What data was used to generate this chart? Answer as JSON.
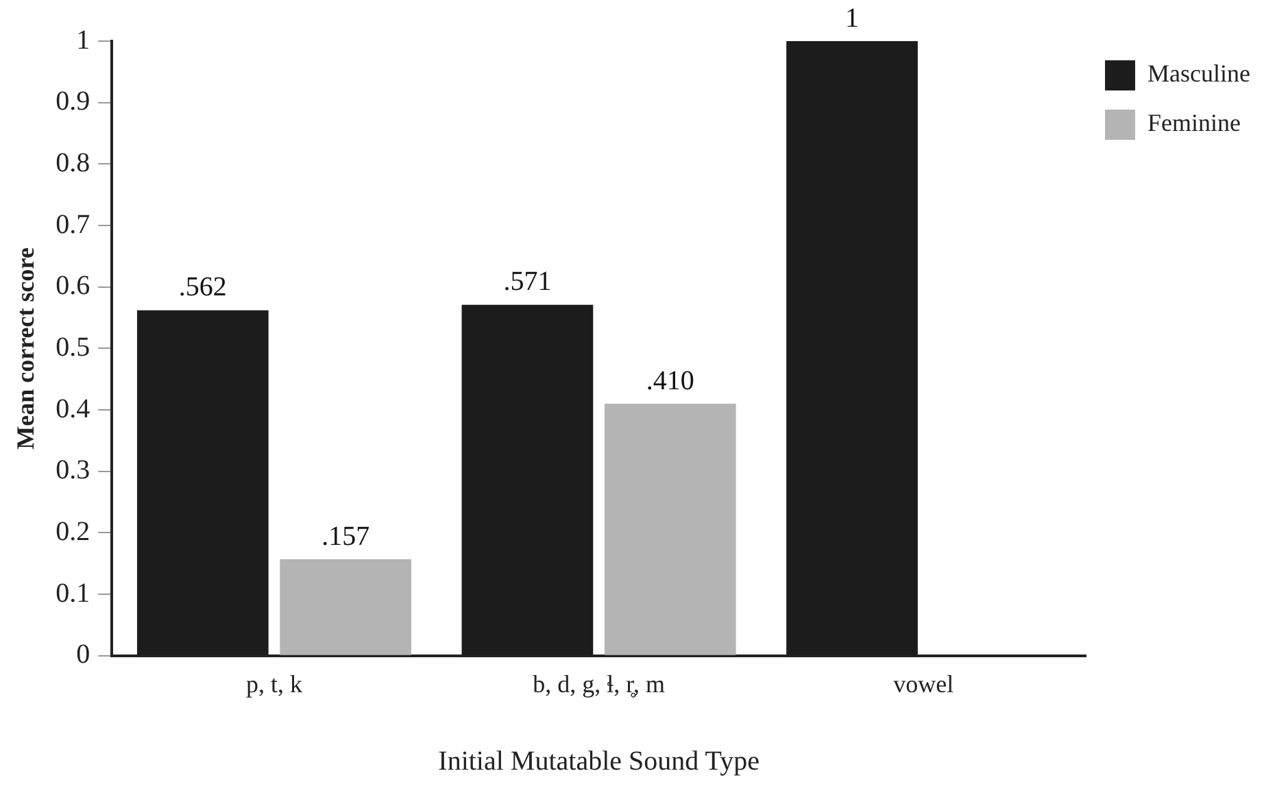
{
  "chart_data": {
    "type": "bar",
    "xlabel": "Initial Mutatable Sound Type",
    "ylabel": "Mean correct score",
    "categories": [
      "p, t, k",
      "b, d, g, ɬ, r̥, m",
      "vowel"
    ],
    "series": [
      {
        "name": "Masculine",
        "color": "#1c1c1c",
        "values": [
          0.562,
          0.571,
          1
        ],
        "value_labels": [
          ".562",
          ".571",
          "1"
        ]
      },
      {
        "name": "Feminine",
        "color": "#b4b4b4",
        "values": [
          0.157,
          0.41,
          null
        ],
        "value_labels": [
          ".157",
          ".410",
          null
        ]
      }
    ],
    "ylim": [
      0,
      1
    ],
    "yticks": [
      0,
      0.1,
      0.2,
      0.3,
      0.4,
      0.5,
      0.6,
      0.7,
      0.8,
      0.9,
      1
    ],
    "grid": false,
    "legend": "top right"
  }
}
